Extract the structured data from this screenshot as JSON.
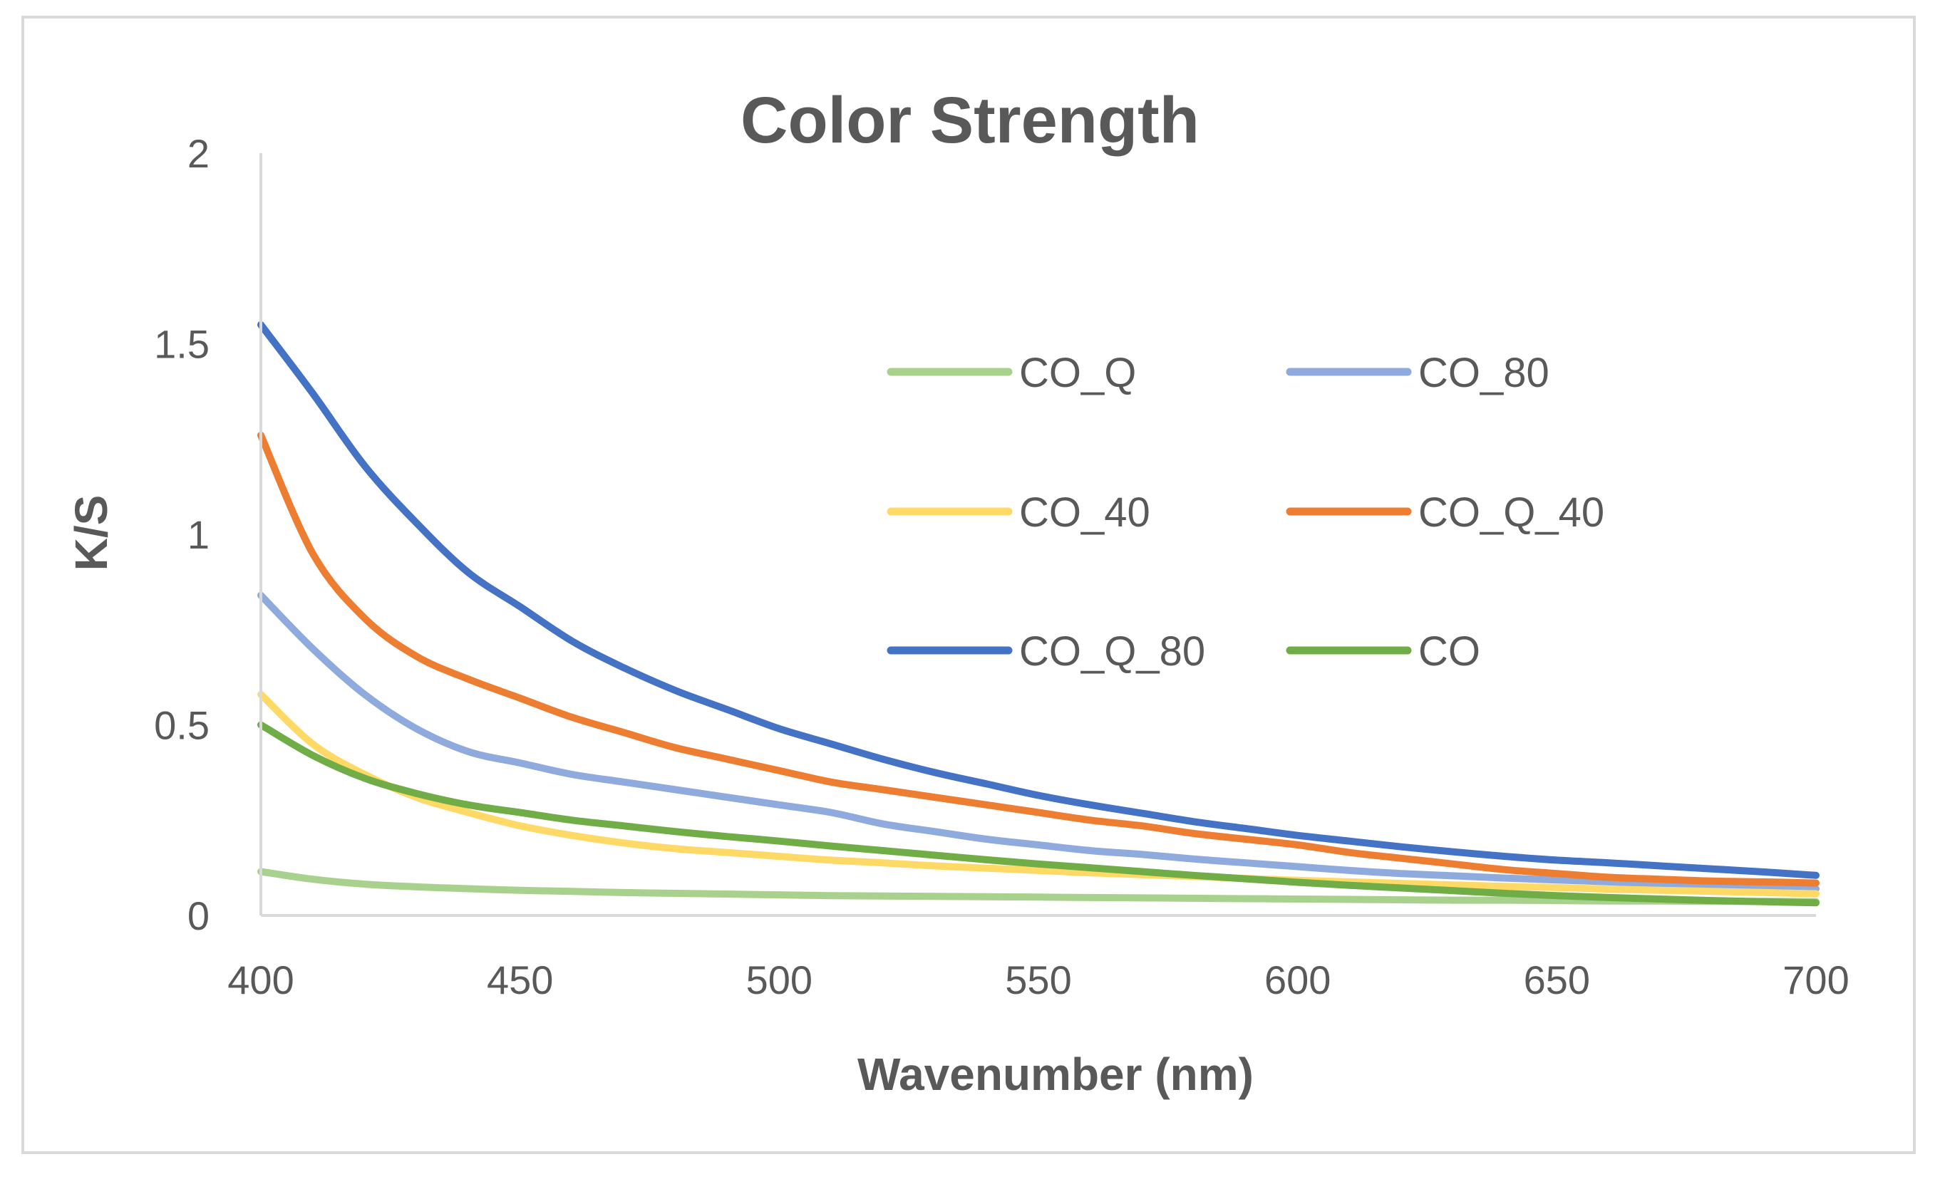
{
  "chart_data": {
    "type": "line",
    "title": "Color Strength",
    "xlabel": "Wavenumber (nm)",
    "ylabel": "K/S",
    "xlim": [
      400,
      700
    ],
    "ylim": [
      0,
      2
    ],
    "xticks": [
      400,
      450,
      500,
      550,
      600,
      650,
      700
    ],
    "yticks": [
      0,
      0.5,
      1,
      1.5,
      2
    ],
    "ytick_labels": [
      "0",
      "0.5",
      "1",
      "1.5",
      "2"
    ],
    "legend_position": "top-right",
    "x": [
      400,
      410,
      420,
      430,
      440,
      450,
      460,
      470,
      480,
      490,
      500,
      510,
      520,
      530,
      540,
      550,
      560,
      570,
      580,
      590,
      600,
      610,
      620,
      630,
      640,
      650,
      660,
      670,
      680,
      690,
      700
    ],
    "series": [
      {
        "name": "CO_Q",
        "color": "#a9d18e",
        "values": [
          0.115,
          0.095,
          0.082,
          0.075,
          0.07,
          0.066,
          0.063,
          0.06,
          0.058,
          0.056,
          0.054,
          0.052,
          0.051,
          0.05,
          0.049,
          0.048,
          0.047,
          0.046,
          0.045,
          0.044,
          0.043,
          0.042,
          0.041,
          0.04,
          0.04,
          0.039,
          0.038,
          0.038,
          0.037,
          0.037,
          0.036
        ]
      },
      {
        "name": "CO_80",
        "color": "#8faadc",
        "values": [
          0.84,
          0.7,
          0.58,
          0.49,
          0.43,
          0.4,
          0.37,
          0.35,
          0.33,
          0.31,
          0.29,
          0.27,
          0.24,
          0.22,
          0.2,
          0.185,
          0.17,
          0.16,
          0.148,
          0.138,
          0.128,
          0.118,
          0.11,
          0.104,
          0.098,
          0.093,
          0.088,
          0.083,
          0.078,
          0.074,
          0.07
        ]
      },
      {
        "name": "CO_40",
        "color": "#ffd966",
        "values": [
          0.58,
          0.45,
          0.37,
          0.31,
          0.27,
          0.235,
          0.21,
          0.19,
          0.175,
          0.165,
          0.155,
          0.145,
          0.138,
          0.13,
          0.124,
          0.118,
          0.112,
          0.107,
          0.102,
          0.097,
          0.092,
          0.088,
          0.084,
          0.08,
          0.076,
          0.073,
          0.069,
          0.066,
          0.063,
          0.06,
          0.057
        ]
      },
      {
        "name": "CO_Q_40",
        "color": "#ed7d31",
        "values": [
          1.26,
          0.95,
          0.78,
          0.68,
          0.62,
          0.57,
          0.52,
          0.48,
          0.44,
          0.41,
          0.38,
          0.35,
          0.33,
          0.31,
          0.29,
          0.27,
          0.25,
          0.235,
          0.215,
          0.2,
          0.185,
          0.165,
          0.15,
          0.135,
          0.12,
          0.11,
          0.1,
          0.095,
          0.09,
          0.088,
          0.085
        ]
      },
      {
        "name": "CO_Q_80",
        "color": "#4472c4",
        "values": [
          1.55,
          1.37,
          1.18,
          1.03,
          0.9,
          0.81,
          0.72,
          0.65,
          0.59,
          0.54,
          0.49,
          0.45,
          0.41,
          0.375,
          0.345,
          0.315,
          0.29,
          0.268,
          0.246,
          0.228,
          0.21,
          0.195,
          0.18,
          0.167,
          0.155,
          0.145,
          0.138,
          0.13,
          0.122,
          0.114,
          0.105
        ]
      },
      {
        "name": "CO",
        "color": "#70ad47",
        "values": [
          0.5,
          0.42,
          0.36,
          0.32,
          0.29,
          0.27,
          0.25,
          0.235,
          0.22,
          0.207,
          0.195,
          0.182,
          0.17,
          0.158,
          0.146,
          0.135,
          0.125,
          0.115,
          0.105,
          0.096,
          0.087,
          0.079,
          0.072,
          0.065,
          0.058,
          0.052,
          0.047,
          0.043,
          0.039,
          0.036,
          0.033
        ]
      }
    ]
  }
}
